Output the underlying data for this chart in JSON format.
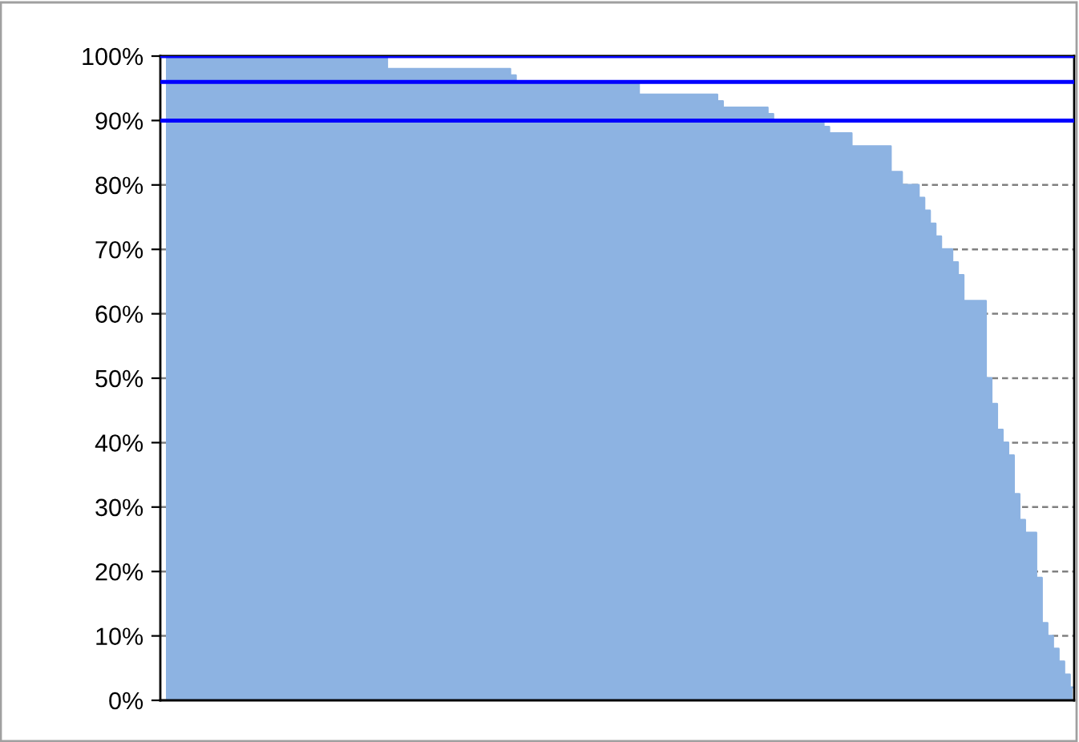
{
  "chart_data": {
    "type": "step",
    "categories": [
      null,
      null,
      null,
      null,
      null,
      null,
      null,
      null,
      null,
      null,
      null,
      null,
      null,
      null,
      null,
      null,
      null,
      null,
      null,
      null,
      null,
      null,
      null,
      null,
      null,
      null,
      null,
      null,
      null,
      null,
      null,
      null,
      null,
      null,
      null,
      null,
      null,
      null,
      null,
      null,
      null,
      null,
      null,
      null,
      null,
      null,
      null,
      null,
      null,
      null,
      null,
      null,
      null,
      null,
      null,
      null,
      null,
      null,
      null,
      null,
      null,
      null,
      null,
      null,
      null,
      null,
      null,
      null,
      null,
      null,
      null,
      null,
      null,
      null,
      null,
      null,
      null,
      null,
      null,
      null,
      null,
      null,
      null,
      null,
      null,
      null,
      null,
      null,
      null,
      null,
      null,
      null,
      null,
      null,
      null,
      null,
      null,
      null,
      null,
      null,
      null,
      null,
      null,
      null,
      null,
      null,
      null,
      null,
      null,
      null,
      null,
      null,
      null,
      null,
      null,
      null,
      null,
      null,
      null,
      null,
      null,
      null,
      null,
      null,
      null,
      null,
      null,
      null,
      null,
      null,
      null,
      null,
      null,
      null,
      null,
      null,
      null,
      null,
      null,
      null,
      null,
      null,
      null,
      null,
      null,
      null,
      null,
      null,
      null,
      null,
      null,
      null,
      null,
      null,
      null,
      null,
      null,
      null,
      null,
      null,
      null,
      null,
      null
    ],
    "values": [
      100,
      100,
      100,
      100,
      100,
      100,
      100,
      100,
      100,
      100,
      100,
      100,
      100,
      100,
      100,
      100,
      100,
      100,
      100,
      100,
      100,
      100,
      100,
      100,
      100,
      100,
      100,
      100,
      100,
      100,
      100,
      100,
      100,
      100,
      100,
      100,
      100,
      100,
      100,
      100,
      98,
      98,
      98,
      98,
      98,
      98,
      98,
      98,
      98,
      98,
      98,
      98,
      98,
      98,
      98,
      98,
      98,
      98,
      98,
      98,
      98,
      98,
      97,
      96,
      96,
      96,
      96,
      96,
      96,
      96,
      96,
      96,
      96,
      96,
      96,
      96,
      96,
      96,
      96,
      96,
      96,
      96,
      96,
      96,
      96,
      94,
      94,
      94,
      94,
      94,
      94,
      94,
      94,
      94,
      94,
      94,
      94,
      94,
      94,
      93,
      92,
      92,
      92,
      92,
      92,
      92,
      92,
      92,
      91,
      90,
      90,
      90,
      90,
      90,
      90,
      90,
      90,
      90,
      89,
      88,
      88,
      88,
      88,
      86,
      86,
      86,
      86,
      86,
      86,
      86,
      82,
      82,
      80,
      80,
      80,
      78,
      76,
      74,
      72,
      70,
      70,
      68,
      66,
      62,
      62,
      62,
      62,
      50,
      46,
      42,
      40,
      38,
      32,
      28,
      26,
      26,
      19,
      12,
      10,
      8,
      6,
      4,
      2
    ],
    "color": "#8db3e2",
    "ylim": [
      0,
      100
    ],
    "yticks": [
      {
        "value": 0,
        "label": "0%"
      },
      {
        "value": 10,
        "label": "10%"
      },
      {
        "value": 20,
        "label": "20%"
      },
      {
        "value": 30,
        "label": "30%"
      },
      {
        "value": 40,
        "label": "40%"
      },
      {
        "value": 50,
        "label": "50%"
      },
      {
        "value": 60,
        "label": "60%"
      },
      {
        "value": 70,
        "label": "70%"
      },
      {
        "value": 80,
        "label": "80%"
      },
      {
        "value": 90,
        "label": "90%"
      },
      {
        "value": 100,
        "label": "100%"
      }
    ],
    "grid": "y",
    "ref_lines": [
      {
        "axis": "y",
        "value": 100,
        "color": "#0000ff"
      },
      {
        "axis": "y",
        "value": 96,
        "color": "#0000ff"
      },
      {
        "axis": "y",
        "value": 90,
        "color": "#0000ff"
      }
    ]
  }
}
